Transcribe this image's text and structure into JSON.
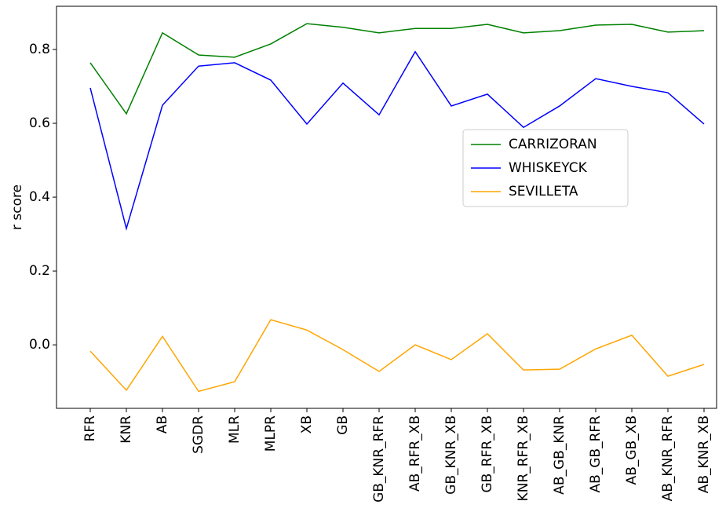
{
  "chart_data": {
    "type": "line",
    "y_label": "r score",
    "categories": [
      "RFR",
      "KNR",
      "AB",
      "SGDR",
      "MLR",
      "MLPR",
      "XB",
      "GB",
      "GB_KNR_RFR",
      "AB_RFR_XB",
      "GB_KNR_XB",
      "GB_RFR_XB",
      "KNR_RFR_XB",
      "AB_GB_KNR",
      "AB_GB_RFR",
      "AB_GB_XB",
      "AB_KNR_RFR",
      "AB_KNR_XB"
    ],
    "series": [
      {
        "name": "CARRIZORAN",
        "color": "#008000",
        "values": [
          0.764,
          0.626,
          0.845,
          0.785,
          0.779,
          0.815,
          0.87,
          0.86,
          0.845,
          0.857,
          0.857,
          0.868,
          0.845,
          0.851,
          0.866,
          0.868,
          0.847,
          0.851
        ]
      },
      {
        "name": "WHISKEYCK",
        "color": "#0000ff",
        "values": [
          0.696,
          0.315,
          0.649,
          0.755,
          0.764,
          0.717,
          0.598,
          0.709,
          0.623,
          0.794,
          0.647,
          0.679,
          0.589,
          0.647,
          0.721,
          0.7,
          0.683,
          0.598
        ]
      },
      {
        "name": "SEVILLETA",
        "color": "#ffa500",
        "values": [
          -0.017,
          -0.123,
          0.023,
          -0.126,
          -0.1,
          0.068,
          0.04,
          -0.013,
          -0.072,
          0.0,
          -0.04,
          0.03,
          -0.068,
          -0.066,
          -0.011,
          0.026,
          -0.085,
          -0.053
        ]
      }
    ],
    "ylim": [
      -0.172,
      0.917
    ],
    "yticks": [
      {
        "value": 0,
        "label": "0.0"
      },
      0.2,
      0.4,
      0.6,
      0.8
    ],
    "legend_loc": "center right"
  }
}
